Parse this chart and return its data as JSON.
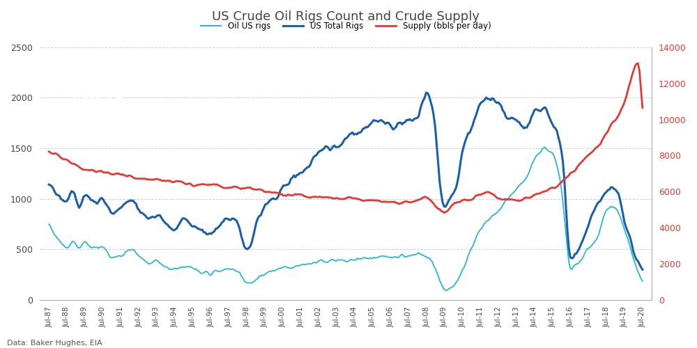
{
  "title": "US Crude Oil Rigs Count and Crude Supply",
  "legend_labels": [
    "Oil US rigs",
    "US Total Rigs",
    "Supply (bbls per day)"
  ],
  "ylim_left": [
    0,
    2500
  ],
  "ylim_right": [
    0,
    14000
  ],
  "yticks_left": [
    0,
    500,
    1000,
    1500,
    2000,
    2500
  ],
  "yticks_right": [
    0,
    2000,
    4000,
    6000,
    8000,
    10000,
    12000,
    14000
  ],
  "background_color": "#ffffff",
  "grid_color": "#cccccc",
  "title_color": "#444444",
  "line_color_oil_us": "#29b6d4",
  "line_color_total": "#1a5fa8",
  "line_color_supply": "#e53935",
  "fxpro_box_color": "#cc1111",
  "source_text": "Data: Baker Hughes, EIA",
  "xtick_labels": [
    "Jul-87",
    "Jul-88",
    "Jul-89",
    "Jul-90",
    "Jul-91",
    "Jul-92",
    "Jul-93",
    "Jul-94",
    "Jul-95",
    "Jul-96",
    "Jul-97",
    "Jul-98",
    "Jul-99",
    "Jul-00",
    "Jul-01",
    "Jul-02",
    "Jul-03",
    "Jul-04",
    "Jul-05",
    "Jul-06",
    "Jul-07",
    "Jul-08",
    "Jul-09",
    "Jul-10",
    "Jul-11",
    "Jul-12",
    "Jul-13",
    "Jul-14",
    "Jul-15",
    "Jul-16",
    "Jul-17",
    "Jul-18",
    "Jul-19",
    "Jul-20"
  ]
}
